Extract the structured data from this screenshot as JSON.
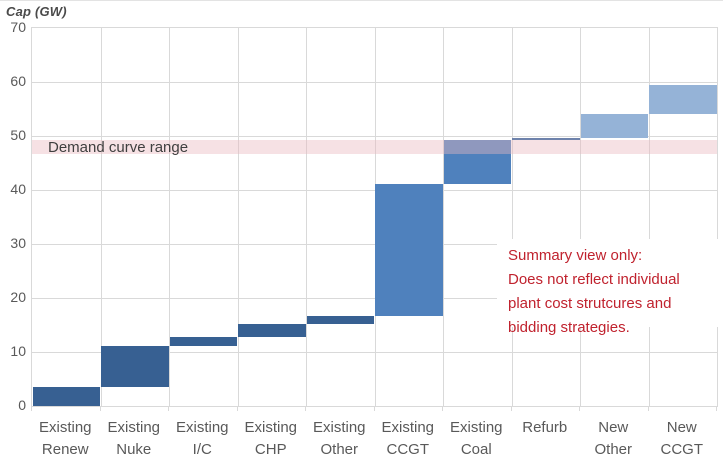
{
  "chart_data": {
    "type": "bar",
    "subtype": "waterfall",
    "title": "Cap (GW)",
    "ylabel": "Cap (GW)",
    "xlabel": "",
    "ylim": [
      0,
      70
    ],
    "ytick_step": 10,
    "grid": true,
    "legend": "none",
    "categories": [
      "Existing Renew",
      "Existing Nuke",
      "Existing I/C",
      "Existing CHP",
      "Existing Other",
      "Existing CCGT",
      "Existing Coal",
      "Refurb",
      "New Other",
      "New CCGT"
    ],
    "bars": [
      {
        "label": "Existing Renew",
        "label_lines": "Existing\nRenew",
        "start": 0,
        "end": 3.5,
        "color": "#376092"
      },
      {
        "label": "Existing Nuke",
        "label_lines": "Existing\nNuke",
        "start": 3.5,
        "end": 11.2,
        "color": "#376092"
      },
      {
        "label": "Existing I/C",
        "label_lines": "Existing\nI/C",
        "start": 11.2,
        "end": 12.7,
        "color": "#376092"
      },
      {
        "label": "Existing CHP",
        "label_lines": "Existing\nCHP",
        "start": 12.7,
        "end": 15.1,
        "color": "#376092"
      },
      {
        "label": "Existing Other",
        "label_lines": "Existing\nOther",
        "start": 15.1,
        "end": 16.7,
        "color": "#376092"
      },
      {
        "label": "Existing CCGT",
        "label_lines": "Existing\nCCGT",
        "start": 16.7,
        "end": 41.2,
        "color": "#4F81BD"
      },
      {
        "label": "Existing Coal",
        "label_lines": "Existing\nCoal",
        "start": 41.2,
        "end": 49.2,
        "color": "#4F81BD"
      },
      {
        "label": "Refurb",
        "label_lines": "Refurb",
        "start": 49.2,
        "end": 49.7,
        "color": "#6E82AB"
      },
      {
        "label": "New Other",
        "label_lines": "New\nOther",
        "start": 49.7,
        "end": 54.1,
        "color": "#95B3D7"
      },
      {
        "label": "New CCGT",
        "label_lines": "New\nCCGT",
        "start": 54.1,
        "end": 59.4,
        "color": "#95B3D7"
      }
    ],
    "demand_band": {
      "label": "Demand curve range",
      "from": 46.6,
      "to": 49.3,
      "fill": "rgba(233,183,191,0.42)",
      "label_color": "#3F3F3F"
    },
    "annotation": {
      "lines": [
        "Summary view only:",
        "Does not reflect individual",
        "plant cost strutcures and",
        "bidding strategies."
      ],
      "color": "#C0222E"
    },
    "colors": {
      "dark_blue": "#376092",
      "mid_blue": "#4F81BD",
      "light_blue": "#95B3D7",
      "grid": "#D9D9D9",
      "axis_text": "#595959",
      "title_text": "#4A4A4A"
    }
  }
}
